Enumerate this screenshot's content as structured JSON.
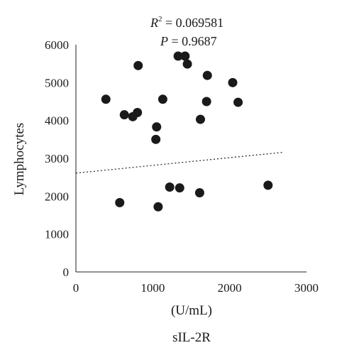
{
  "chart_data": {
    "type": "scatter",
    "annotations": {
      "r2_symbol": "R",
      "r2_superscript": "2",
      "r2_value": " = 0.069581",
      "p_symbol": "P",
      "p_value": " = 0.9687"
    },
    "xlabel": "(U/mL)",
    "caption": "sIL-2R",
    "ylabel": "Lymphocytes",
    "xlim": [
      0,
      3000
    ],
    "ylim": [
      0,
      6000
    ],
    "x_ticks": [
      "0",
      "1000",
      "2000",
      "3000"
    ],
    "y_ticks": [
      "0",
      "1000",
      "2000",
      "3000",
      "4000",
      "5000",
      "6000"
    ],
    "points": [
      {
        "x": 390,
        "y": 4560
      },
      {
        "x": 570,
        "y": 1830
      },
      {
        "x": 630,
        "y": 4150
      },
      {
        "x": 740,
        "y": 4100
      },
      {
        "x": 800,
        "y": 4210
      },
      {
        "x": 810,
        "y": 5450
      },
      {
        "x": 1040,
        "y": 3500
      },
      {
        "x": 1050,
        "y": 3830
      },
      {
        "x": 1070,
        "y": 1720
      },
      {
        "x": 1130,
        "y": 4560
      },
      {
        "x": 1220,
        "y": 2240
      },
      {
        "x": 1330,
        "y": 5700
      },
      {
        "x": 1350,
        "y": 2220
      },
      {
        "x": 1420,
        "y": 5700
      },
      {
        "x": 1450,
        "y": 5490
      },
      {
        "x": 1610,
        "y": 2090
      },
      {
        "x": 1620,
        "y": 4030
      },
      {
        "x": 1700,
        "y": 4500
      },
      {
        "x": 1710,
        "y": 5190
      },
      {
        "x": 2040,
        "y": 5000
      },
      {
        "x": 2110,
        "y": 4480
      },
      {
        "x": 2500,
        "y": 2290
      }
    ],
    "trendline": {
      "style": "dotted",
      "x": [
        0,
        2700
      ],
      "y": [
        2610,
        3160
      ]
    },
    "grid": false,
    "legend": "none"
  }
}
